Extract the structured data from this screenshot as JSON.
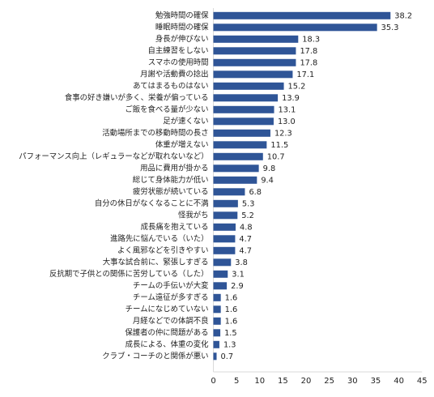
{
  "chart_data": {
    "type": "bar",
    "orientation": "horizontal",
    "categories": [
      "勉強時間の確保",
      "睡眠時間の確保",
      "身長が伸びない",
      "自主練習をしない",
      "スマホの使用時間",
      "月謝や活動費の捻出",
      "あてはまるものはない",
      "食事の好き嫌いが多く、栄養が偏っている",
      "ご飯を食べる量が少ない",
      "足が速くない",
      "活動場所までの移動時間の長さ",
      "体重が増えない",
      "パフォーマンス向上（レギュラーなどが取れないなど）",
      "用品に費用が掛かる",
      "総じて身体能力が低い",
      "疲労状態が続いている",
      "自分の休日がなくなることに不満",
      "怪我がち",
      "成長痛を抱えている",
      "進路先に悩んでいる（いた）",
      "よく風邪などを引きやすい",
      "大事な試合前に、緊張しすぎる",
      "反抗期で子供との関係に苦労している（した）",
      "チームの手伝いが大変",
      "チーム遠征が多すぎる",
      "チームになじめていない",
      "月経などでの体調不良",
      "保護者の仲に問題がある",
      "成長による、体重の変化",
      "クラブ・コーチのと関係が悪い"
    ],
    "values": [
      38.2,
      35.3,
      18.3,
      17.8,
      17.8,
      17.1,
      15.2,
      13.9,
      13.1,
      13.0,
      12.3,
      11.5,
      10.7,
      9.8,
      9.4,
      6.8,
      5.3,
      5.2,
      4.8,
      4.7,
      4.7,
      3.8,
      3.1,
      2.9,
      1.6,
      1.6,
      1.6,
      1.5,
      1.3,
      0.7
    ],
    "value_labels": [
      "38.2",
      "35.3",
      "18.3",
      "17.8",
      "17.8",
      "17.1",
      "15.2",
      "13.9",
      "13.1",
      "13.0",
      "12.3",
      "11.5",
      "10.7",
      "9.8",
      "9.4",
      "6.8",
      "5.3",
      "5.2",
      "4.8",
      "4.7",
      "4.7",
      "3.8",
      "3.1",
      "2.9",
      "1.6",
      "1.6",
      "1.6",
      "1.5",
      "1.3",
      "0.7"
    ],
    "xlim": [
      0,
      45
    ],
    "xticks": [
      0,
      5,
      10,
      15,
      20,
      25,
      30,
      35,
      40,
      45
    ],
    "title": "",
    "xlabel": "",
    "ylabel": "",
    "grid": false,
    "bar_color": "#2f5597"
  }
}
